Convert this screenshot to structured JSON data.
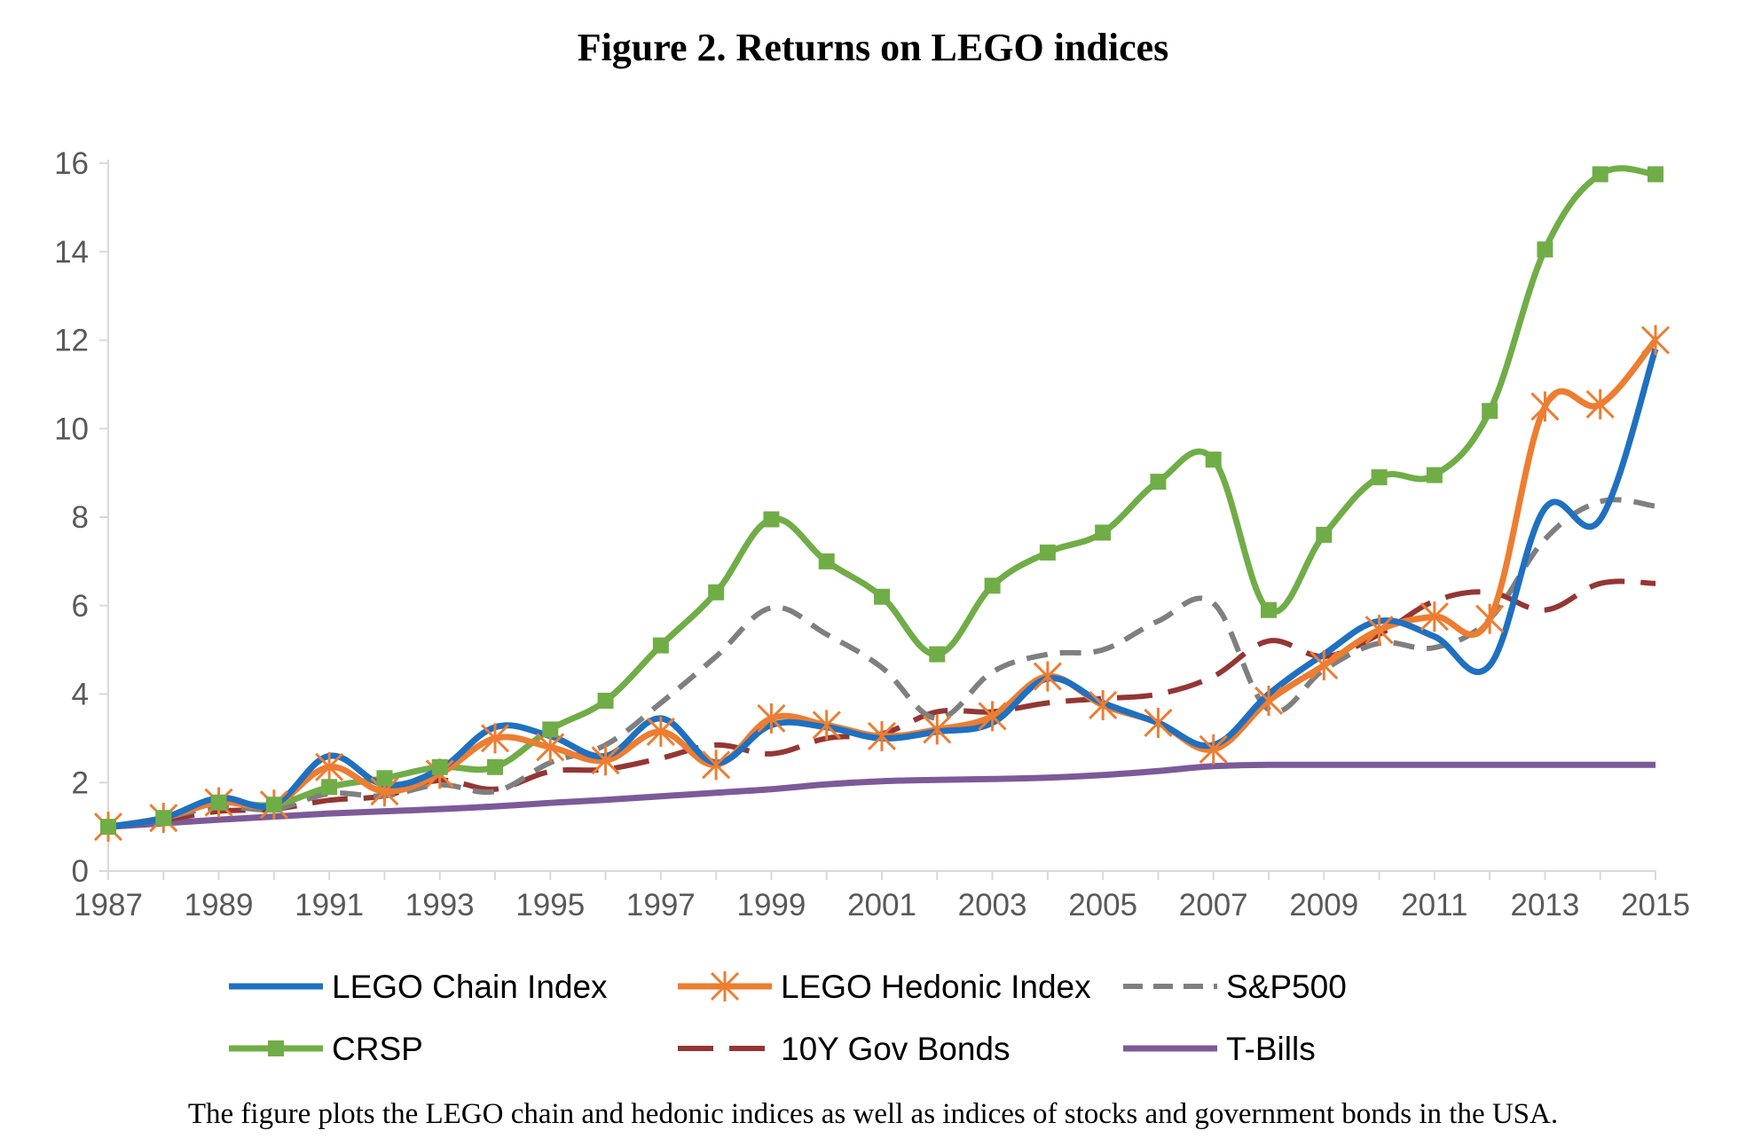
{
  "figure": {
    "title": "Figure 2. Returns on LEGO indices",
    "caption": "The figure plots the LEGO chain and hedonic indices as well as indices of stocks and government bonds in the USA."
  },
  "chart_data": {
    "type": "line",
    "title": "Figure 2. Returns on LEGO indices",
    "xlabel": "",
    "ylabel": "",
    "xlim": [
      1987,
      2015
    ],
    "ylim": [
      0,
      16
    ],
    "grid": false,
    "x_tick_labels": [
      "1987",
      "1989",
      "1991",
      "1993",
      "1995",
      "1997",
      "1999",
      "2001",
      "2003",
      "2005",
      "2007",
      "2009",
      "2011",
      "2013",
      "2015"
    ],
    "y_tick_labels": [
      "0",
      "2",
      "4",
      "6",
      "8",
      "10",
      "12",
      "14",
      "16"
    ],
    "x": [
      1987,
      1988,
      1989,
      1990,
      1991,
      1992,
      1993,
      1994,
      1995,
      1996,
      1997,
      1998,
      1999,
      2000,
      2001,
      2002,
      2003,
      2004,
      2005,
      2006,
      2007,
      2008,
      2009,
      2010,
      2011,
      2012,
      2013,
      2014,
      2015
    ],
    "legend_position": "bottom",
    "series": [
      {
        "name": "LEGO Chain Index",
        "color": "#1f70c1",
        "style": "solid",
        "marker": "none",
        "values": [
          1.0,
          1.2,
          1.65,
          1.5,
          2.6,
          1.95,
          2.3,
          3.25,
          3.05,
          2.6,
          3.45,
          2.45,
          3.3,
          3.25,
          3.0,
          3.15,
          3.35,
          4.35,
          3.8,
          3.35,
          2.85,
          4.0,
          4.9,
          5.65,
          5.3,
          4.65,
          8.2,
          7.95,
          11.8
        ]
      },
      {
        "name": "LEGO Hedonic Index",
        "color": "#ed7d31",
        "style": "solid",
        "marker": "asterisk",
        "values": [
          1.0,
          1.2,
          1.55,
          1.5,
          2.35,
          1.8,
          2.2,
          3.0,
          2.8,
          2.5,
          3.15,
          2.4,
          3.45,
          3.3,
          3.05,
          3.2,
          3.5,
          4.4,
          3.75,
          3.35,
          2.75,
          3.85,
          4.65,
          5.45,
          5.75,
          5.7,
          10.5,
          10.55,
          12.0
        ]
      },
      {
        "name": "S&P500",
        "color": "#7f7f7f",
        "style": "dashed",
        "marker": "none",
        "values": [
          1.0,
          1.2,
          1.45,
          1.4,
          1.75,
          1.7,
          1.95,
          1.8,
          2.45,
          2.85,
          3.8,
          4.85,
          5.95,
          5.35,
          4.6,
          3.45,
          4.5,
          4.9,
          5.0,
          5.65,
          6.05,
          3.65,
          4.55,
          5.15,
          5.05,
          5.7,
          7.5,
          8.35,
          8.25
        ]
      },
      {
        "name": "CRSP",
        "color": "#70ad47",
        "style": "solid",
        "marker": "square",
        "values": [
          1.0,
          1.2,
          1.55,
          1.5,
          1.9,
          2.1,
          2.35,
          2.35,
          3.2,
          3.85,
          5.1,
          6.3,
          7.95,
          7.0,
          6.2,
          4.9,
          6.45,
          7.2,
          7.65,
          8.8,
          9.3,
          5.9,
          7.6,
          8.9,
          8.95,
          10.4,
          14.05,
          15.75,
          15.75
        ]
      },
      {
        "name": "10Y Gov Bonds",
        "color": "#943634",
        "style": "dashed",
        "marker": "none",
        "values": [
          1.0,
          1.15,
          1.35,
          1.4,
          1.6,
          1.7,
          2.05,
          1.85,
          2.25,
          2.3,
          2.55,
          2.85,
          2.65,
          3.0,
          3.1,
          3.6,
          3.6,
          3.8,
          3.9,
          4.0,
          4.4,
          5.2,
          4.85,
          5.35,
          6.1,
          6.3,
          5.9,
          6.5,
          6.5
        ]
      },
      {
        "name": "T-Bills",
        "color": "#7c5a98",
        "style": "solid",
        "marker": "none",
        "values": [
          1.0,
          1.08,
          1.16,
          1.23,
          1.3,
          1.35,
          1.4,
          1.46,
          1.54,
          1.61,
          1.69,
          1.77,
          1.85,
          1.96,
          2.03,
          2.06,
          2.08,
          2.11,
          2.17,
          2.26,
          2.37,
          2.4,
          2.4,
          2.4,
          2.4,
          2.4,
          2.4,
          2.4,
          2.4
        ]
      }
    ]
  }
}
